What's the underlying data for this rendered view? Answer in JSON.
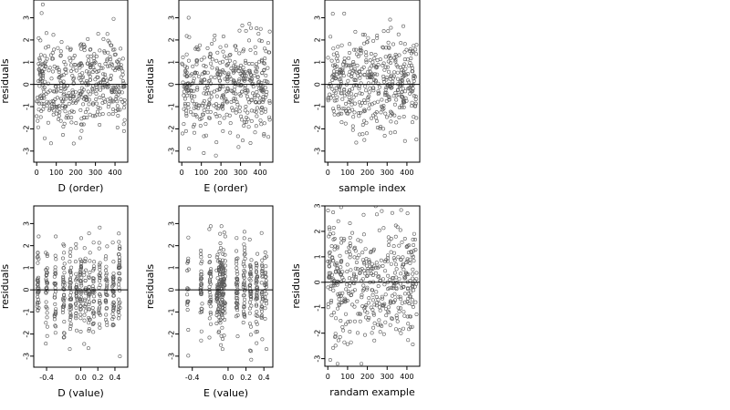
{
  "chart_data": [
    {
      "type": "scatter",
      "xlabel": "D (order)",
      "ylabel": "residuals",
      "xlim": [
        -15,
        465
      ],
      "ylim": [
        -3.5,
        3.8
      ],
      "xticks": [
        0,
        100,
        200,
        300,
        400
      ],
      "yticks": [
        -3,
        -2,
        -1,
        0,
        1,
        2,
        3
      ],
      "hline": 0,
      "x_mode": "index",
      "n_points": 450,
      "seed": 11,
      "series": [
        {
          "values": []
        }
      ]
    },
    {
      "type": "scatter",
      "xlabel": "E (order)",
      "ylabel": "residuals",
      "xlim": [
        -15,
        465
      ],
      "ylim": [
        -3.5,
        3.8
      ],
      "xticks": [
        0,
        100,
        200,
        300,
        400
      ],
      "yticks": [
        -3,
        -2,
        -1,
        0,
        1,
        2,
        3
      ],
      "hline": 0,
      "x_mode": "index",
      "n_points": 450,
      "seed": 23,
      "series": [
        {
          "values": []
        }
      ]
    },
    {
      "type": "scatter",
      "xlabel": "sample index",
      "ylabel": "residuals",
      "xlim": [
        -15,
        465
      ],
      "ylim": [
        -3.5,
        3.8
      ],
      "xticks": [
        0,
        100,
        200,
        300,
        400
      ],
      "yticks": [
        -3,
        -2,
        -1,
        0,
        1,
        2,
        3
      ],
      "hline": 0,
      "x_mode": "index",
      "n_points": 450,
      "seed": 37,
      "series": [
        {
          "values": []
        }
      ]
    },
    {
      "type": "scatter",
      "xlabel": "D (value)",
      "ylabel": "residuals",
      "xlim": [
        -0.55,
        0.55
      ],
      "ylim": [
        -3.5,
        3.8
      ],
      "xticks": [
        -0.4,
        0.0,
        0.2,
        0.4
      ],
      "xtick_labels": [
        "-0.4",
        "0.0",
        "0.2",
        "0.4"
      ],
      "yticks": [
        -3,
        -2,
        -1,
        0,
        1,
        2,
        3
      ],
      "hline": 0,
      "x_mode": "clusters",
      "x_clusters": [
        -0.5,
        -0.4,
        -0.3,
        -0.2,
        -0.12,
        -0.05,
        0.0,
        0.05,
        0.1,
        0.15,
        0.22,
        0.3,
        0.38,
        0.45
      ],
      "n_points": 450,
      "seed": 41,
      "series": [
        {
          "values": []
        }
      ]
    },
    {
      "type": "scatter",
      "xlabel": "E (value)",
      "ylabel": "residuals",
      "xlim": [
        -0.55,
        0.5
      ],
      "ylim": [
        -3.5,
        3.8
      ],
      "xticks": [
        -0.4,
        0.0,
        0.2,
        0.4
      ],
      "xtick_labels": [
        "-0.4",
        "0.0",
        "0.2",
        "0.4"
      ],
      "yticks": [
        -3,
        -2,
        -1,
        0,
        1,
        2,
        3
      ],
      "hline": 0,
      "x_mode": "clusters",
      "x_clusters": [
        -0.45,
        -0.3,
        -0.2,
        -0.12,
        -0.1,
        -0.08,
        -0.06,
        -0.04,
        0.1,
        0.18,
        0.25,
        0.32,
        0.38,
        0.42
      ],
      "n_points": 450,
      "seed": 53,
      "series": [
        {
          "values": []
        }
      ]
    },
    {
      "type": "scatter",
      "xlabel": "randam example",
      "ylabel": "residuals",
      "xlim": [
        -15,
        465
      ],
      "ylim": [
        -3.3,
        3.0
      ],
      "xticks": [
        0,
        100,
        200,
        300,
        400
      ],
      "yticks": [
        -3,
        -2,
        -1,
        0,
        1,
        2,
        3
      ],
      "hline": 0,
      "x_mode": "index",
      "n_points": 450,
      "seed": 67,
      "series": [
        {
          "values": []
        }
      ]
    }
  ]
}
